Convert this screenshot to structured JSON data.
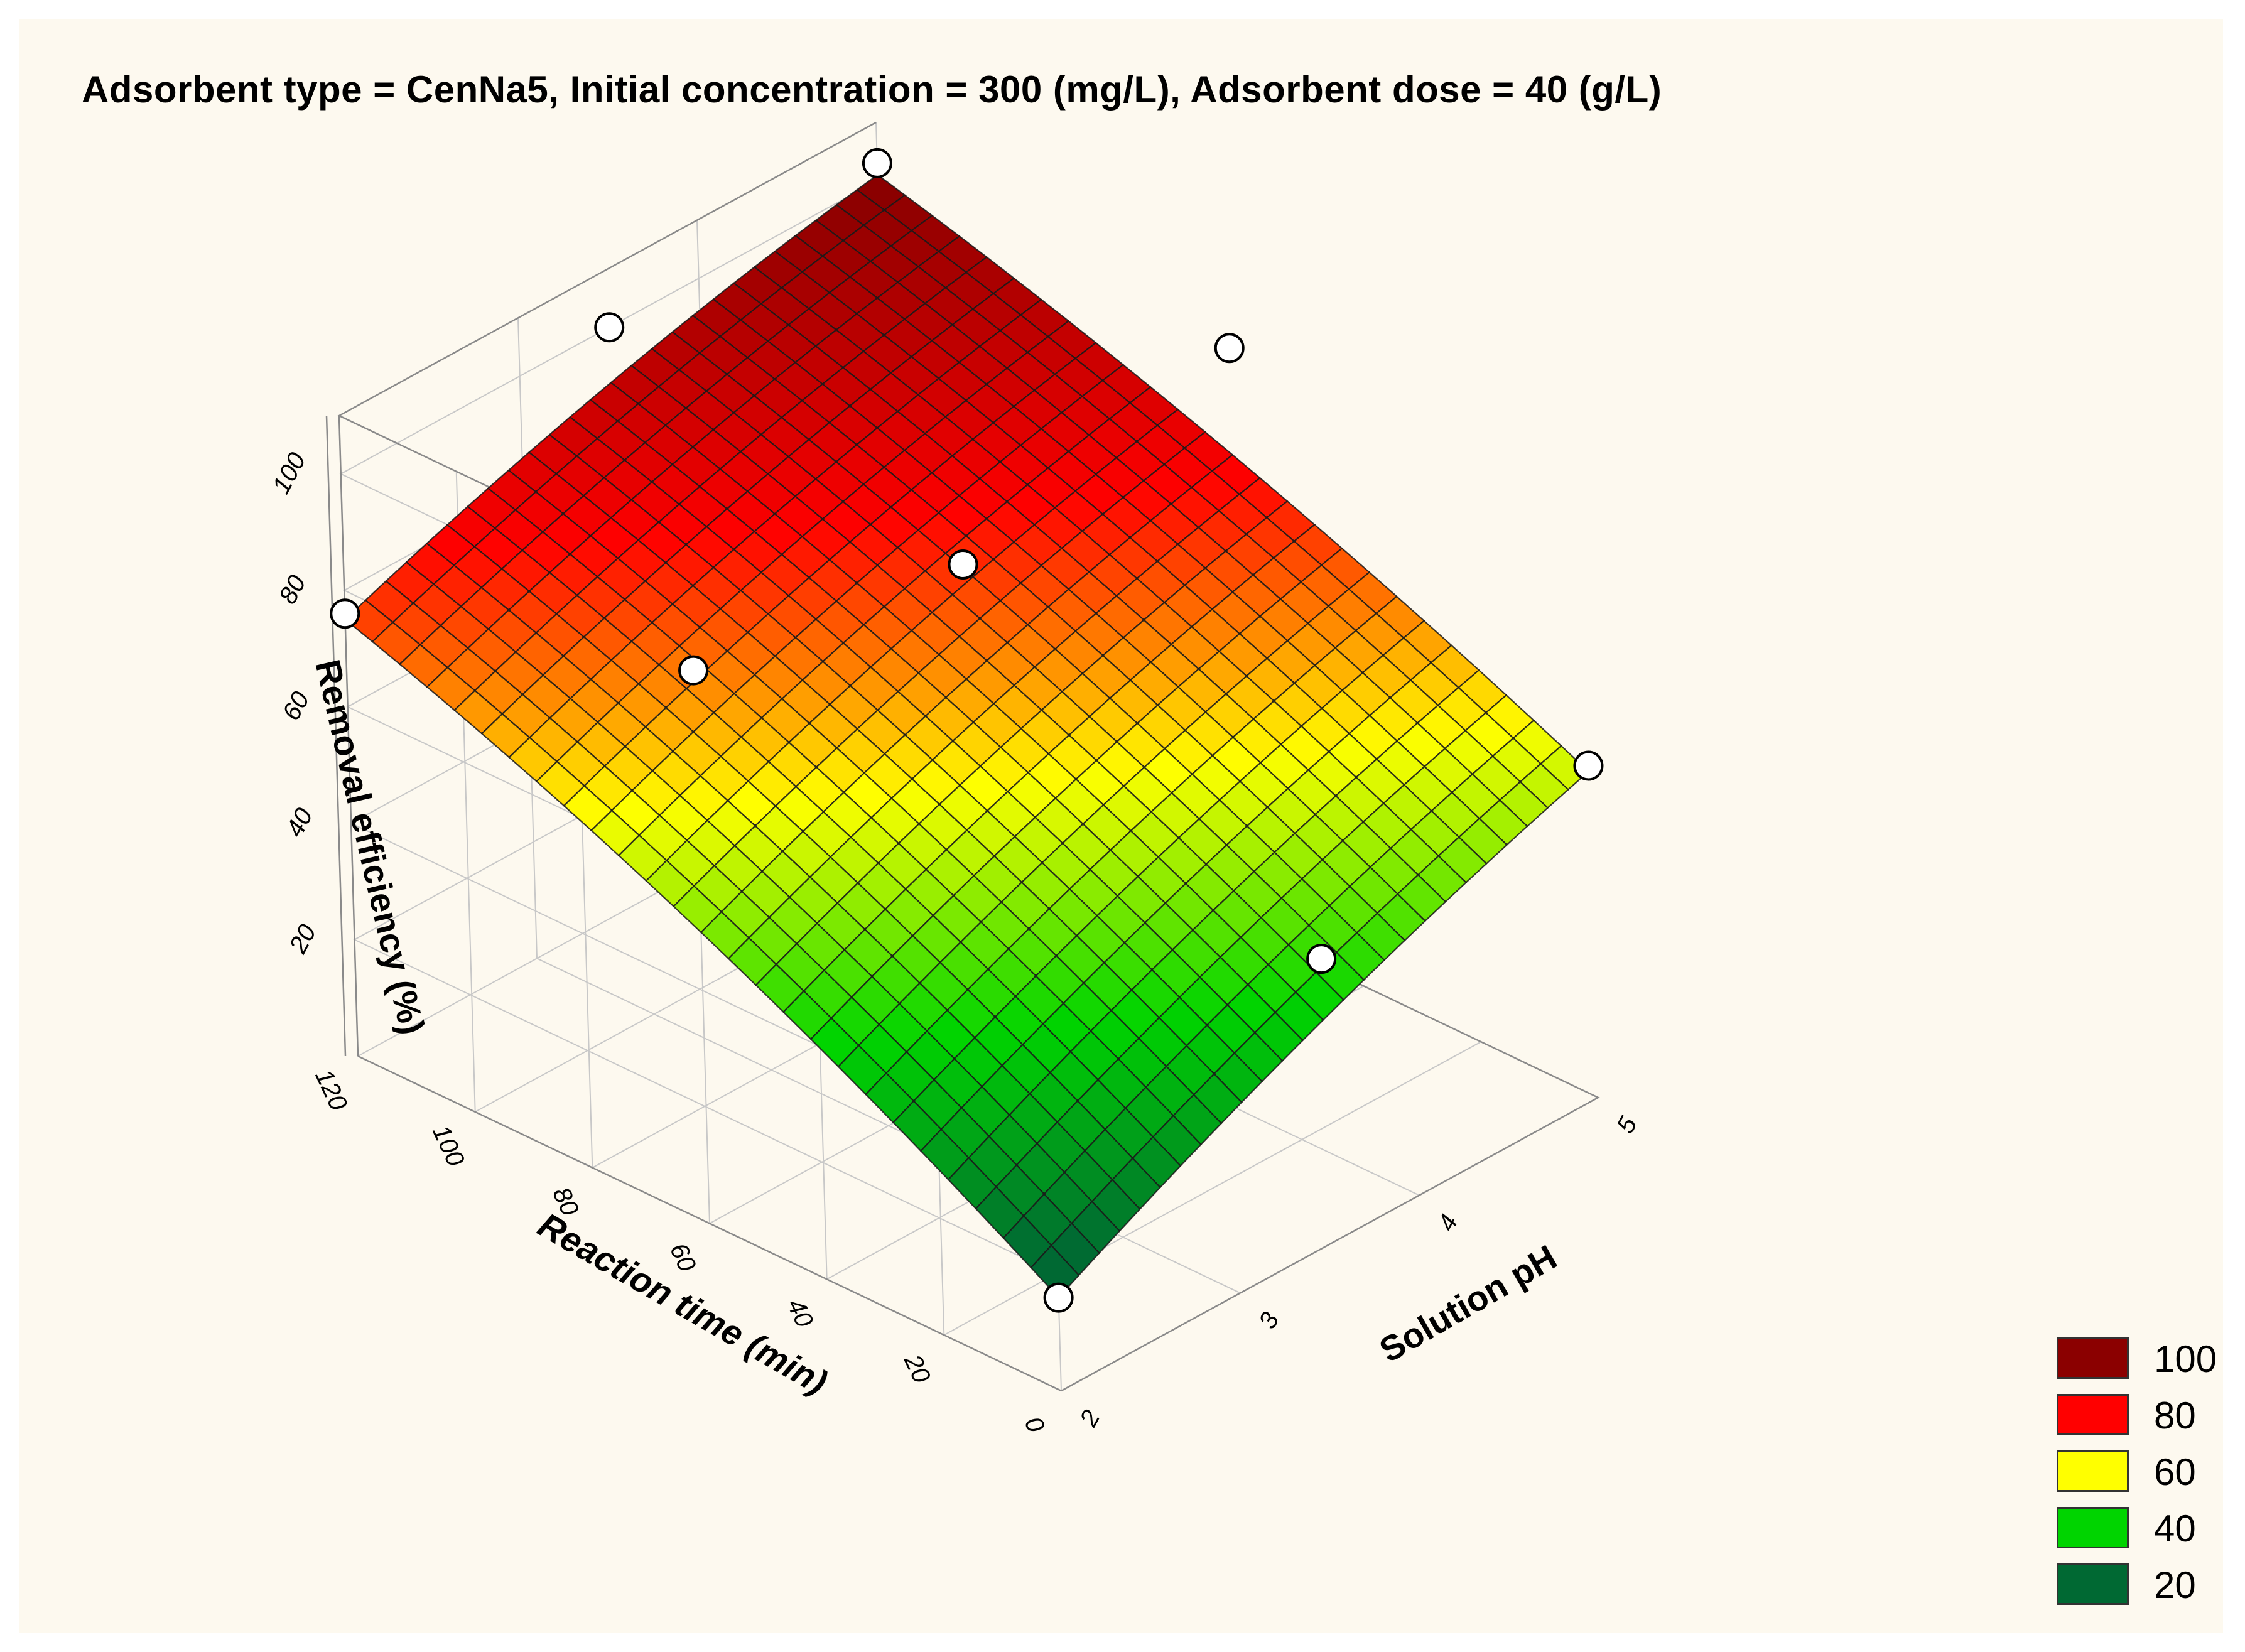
{
  "chart_data": {
    "type": "surface3d",
    "title": "Adsorbent type = CenNa5, Initial concentration = 300 (mg/L), Adsorbent dose = 40 (g/L)",
    "xlabel": "Solution pH",
    "ylabel": "Reaction time (min)",
    "zlabel": "Removal efficiency (%)",
    "xlim": [
      2,
      5
    ],
    "ylim": [
      0,
      120
    ],
    "zlim": [
      0,
      110
    ],
    "x_ticks": [
      "2",
      "3",
      "4",
      "5"
    ],
    "y_ticks": [
      "0",
      "20",
      "40",
      "60",
      "80",
      "100",
      "120"
    ],
    "z_ticks": [
      "20",
      "40",
      "60",
      "80",
      "100"
    ],
    "surface_corners": [
      {
        "pH": 2,
        "time": 0,
        "removal": 16
      },
      {
        "pH": 5,
        "time": 0,
        "removal": 56
      },
      {
        "pH": 2,
        "time": 120,
        "removal": 75
      },
      {
        "pH": 5,
        "time": 120,
        "removal": 101
      }
    ],
    "observed_points": [
      {
        "pH": 2,
        "time": 0,
        "removal": 16
      },
      {
        "pH": 5,
        "time": 0,
        "removal": 57
      },
      {
        "pH": 2,
        "time": 120,
        "removal": 76
      },
      {
        "pH": 5,
        "time": 120,
        "removal": 103
      },
      {
        "pH": 3.5,
        "time": 120,
        "removal": 100
      },
      {
        "pH": 5,
        "time": 60,
        "removal": 100
      },
      {
        "pH": 3.5,
        "time": 0,
        "removal": 49
      },
      {
        "pH": 2,
        "time": 60,
        "removal": 95
      },
      {
        "pH": 3.5,
        "time": 60,
        "removal": 88
      }
    ],
    "legend": [
      {
        "label": "100",
        "color": "#8b0000"
      },
      {
        "label": "80",
        "color": "#ff0000"
      },
      {
        "label": "60",
        "color": "#ffff00"
      },
      {
        "label": "40",
        "color": "#00d400"
      },
      {
        "label": "20",
        "color": "#006933"
      }
    ]
  }
}
